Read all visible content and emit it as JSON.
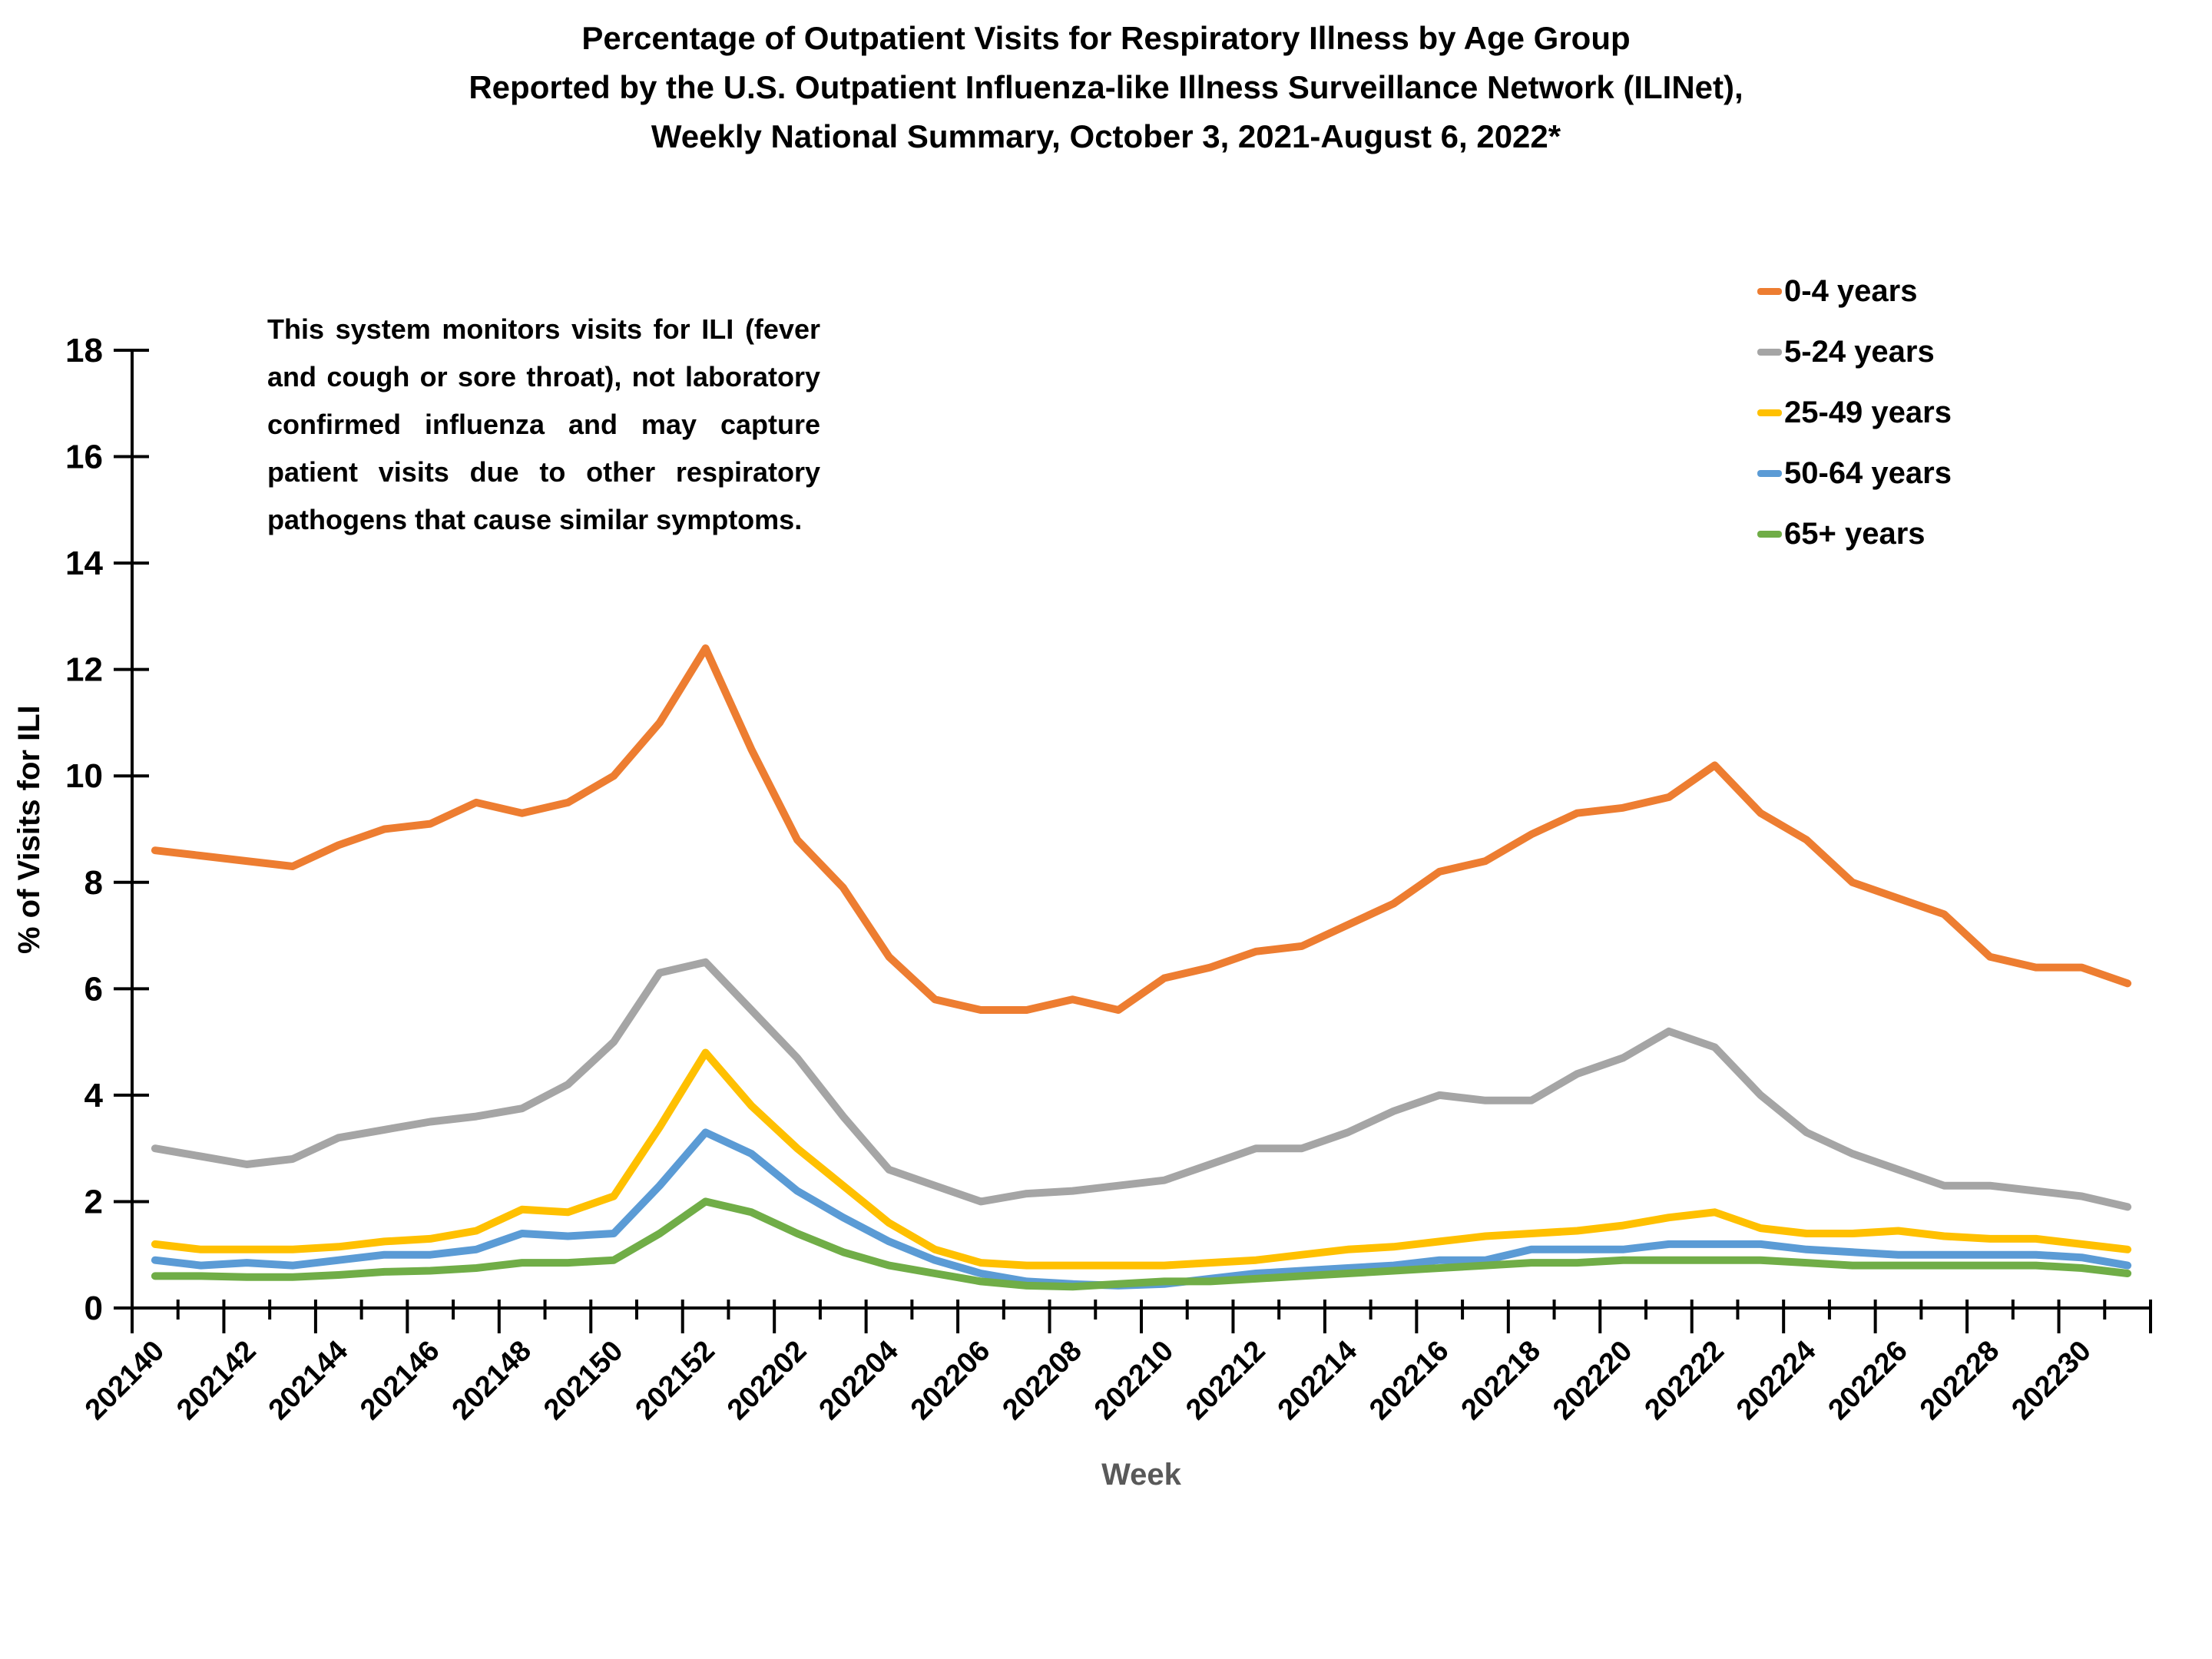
{
  "title": {
    "line1": "Percentage of Outpatient Visits for Respiratory Illness by Age Group",
    "line2": "Reported by the U.S. Outpatient Influenza-like Illness Surveillance Network (ILINet),",
    "line3": "Weekly National Summary, October 3, 2021-August 6, 2022*"
  },
  "annotation": "This system monitors visits for ILI (fever and cough or sore throat), not laboratory confirmed influenza and may capture patient visits due to other respiratory pathogens that cause similar symptoms.",
  "axes": {
    "y_title": "% of Visits for ILI",
    "x_title": "Week",
    "y_ticks": [
      0,
      2,
      4,
      6,
      8,
      10,
      12,
      14,
      16,
      18
    ]
  },
  "chart_data": {
    "type": "line",
    "title": "Percentage of Outpatient Visits for Respiratory Illness by Age Group, ILINet, Weekly National Summary, October 3, 2021-August 6, 2022",
    "xlabel": "Week",
    "ylabel": "% of Visits for ILI",
    "ylim": [
      0,
      18
    ],
    "grid": false,
    "legend_position": "upper right",
    "x": [
      "202140",
      "202141",
      "202142",
      "202143",
      "202144",
      "202145",
      "202146",
      "202147",
      "202148",
      "202149",
      "202150",
      "202151",
      "202152",
      "202201",
      "202202",
      "202203",
      "202204",
      "202205",
      "202206",
      "202207",
      "202208",
      "202209",
      "202210",
      "202211",
      "202212",
      "202213",
      "202214",
      "202215",
      "202216",
      "202217",
      "202218",
      "202219",
      "202220",
      "202221",
      "202222",
      "202223",
      "202224",
      "202225",
      "202226",
      "202227",
      "202228",
      "202229",
      "202230",
      "202231"
    ],
    "x_tick_label_every": 2,
    "series": [
      {
        "name": "0-4 years",
        "color": "#ED7D31",
        "values": [
          8.6,
          8.5,
          8.4,
          8.3,
          8.7,
          9.0,
          9.1,
          9.5,
          9.3,
          9.5,
          10.0,
          11.0,
          12.4,
          10.5,
          8.8,
          7.9,
          6.6,
          5.8,
          5.6,
          5.6,
          5.8,
          5.6,
          6.2,
          6.4,
          6.7,
          6.8,
          7.2,
          7.6,
          8.2,
          8.4,
          8.9,
          9.3,
          9.4,
          9.6,
          10.2,
          9.3,
          8.8,
          8.0,
          7.7,
          7.4,
          6.6,
          6.4,
          6.4,
          6.1
        ]
      },
      {
        "name": "5-24 years",
        "color": "#A5A5A5",
        "values": [
          3.0,
          2.85,
          2.7,
          2.8,
          3.2,
          3.35,
          3.5,
          3.6,
          3.75,
          4.2,
          5.0,
          6.3,
          6.5,
          5.6,
          4.7,
          3.6,
          2.6,
          2.3,
          2.0,
          2.15,
          2.2,
          2.3,
          2.4,
          2.7,
          3.0,
          3.0,
          3.3,
          3.7,
          4.0,
          3.9,
          3.9,
          4.4,
          4.7,
          5.2,
          4.9,
          4.0,
          3.3,
          2.9,
          2.6,
          2.3,
          2.3,
          2.2,
          2.1,
          1.9
        ]
      },
      {
        "name": "25-49 years",
        "color": "#FFC000",
        "values": [
          1.2,
          1.1,
          1.1,
          1.1,
          1.15,
          1.25,
          1.3,
          1.45,
          1.85,
          1.8,
          2.1,
          3.4,
          4.8,
          3.8,
          3.0,
          2.3,
          1.6,
          1.1,
          0.85,
          0.8,
          0.8,
          0.8,
          0.8,
          0.85,
          0.9,
          1.0,
          1.1,
          1.15,
          1.25,
          1.35,
          1.4,
          1.45,
          1.55,
          1.7,
          1.8,
          1.5,
          1.4,
          1.4,
          1.45,
          1.35,
          1.3,
          1.3,
          1.2,
          1.1
        ]
      },
      {
        "name": "50-64 years",
        "color": "#5B9BD5",
        "values": [
          0.9,
          0.8,
          0.85,
          0.8,
          0.9,
          1.0,
          1.0,
          1.1,
          1.4,
          1.35,
          1.4,
          2.3,
          3.3,
          2.9,
          2.2,
          1.7,
          1.25,
          0.9,
          0.65,
          0.5,
          0.45,
          0.42,
          0.45,
          0.55,
          0.65,
          0.7,
          0.75,
          0.8,
          0.9,
          0.9,
          1.1,
          1.1,
          1.1,
          1.2,
          1.2,
          1.2,
          1.1,
          1.05,
          1.0,
          1.0,
          1.0,
          1.0,
          0.95,
          0.8
        ]
      },
      {
        "name": "65+ years",
        "color": "#70AD47",
        "values": [
          0.6,
          0.6,
          0.58,
          0.58,
          0.62,
          0.68,
          0.7,
          0.75,
          0.85,
          0.85,
          0.9,
          1.4,
          2.0,
          1.8,
          1.4,
          1.05,
          0.8,
          0.65,
          0.5,
          0.42,
          0.4,
          0.45,
          0.5,
          0.5,
          0.55,
          0.6,
          0.65,
          0.7,
          0.75,
          0.8,
          0.85,
          0.85,
          0.9,
          0.9,
          0.9,
          0.9,
          0.85,
          0.8,
          0.8,
          0.8,
          0.8,
          0.8,
          0.75,
          0.65
        ]
      }
    ]
  }
}
